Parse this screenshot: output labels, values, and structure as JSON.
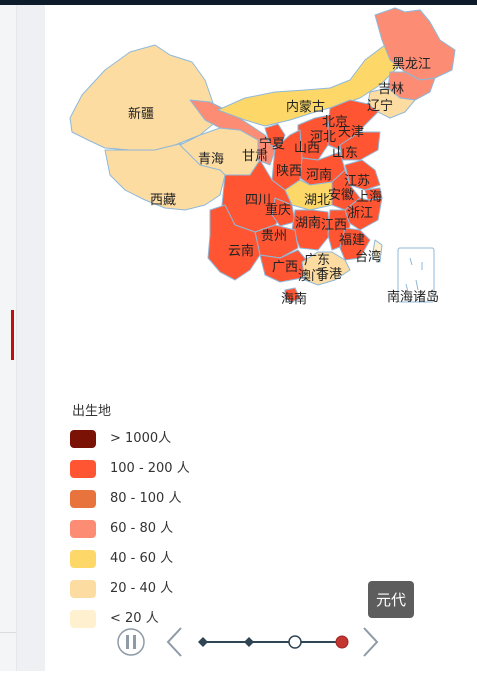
{
  "map": {
    "labels": {
      "heilongjiang": "黑龙江",
      "jilin": "吉林",
      "liaoning": "辽宁",
      "neimenggu": "内蒙古",
      "xinjiang": "新疆",
      "beijing": "北京",
      "tianjin": "天津",
      "hebei": "河北",
      "ningxia": "宁夏",
      "shanxi": "山西",
      "shandong": "山东",
      "gansu": "甘肃",
      "qinghai": "青海",
      "shaanxi": "陕西",
      "henan": "河南",
      "jiangsu": "江苏",
      "xizang": "西藏",
      "sichuan": "四川",
      "hubei": "湖北",
      "anhui": "安徽",
      "shanghai": "上海",
      "chongqing": "重庆",
      "zhejiang": "浙江",
      "hunan": "湖南",
      "jiangxi": "江西",
      "guizhou": "贵州",
      "fujian": "福建",
      "yunnan": "云南",
      "taiwan": "台湾",
      "guangxi": "广西",
      "guangdong": "广东",
      "aomen": "澳门",
      "xianggang": "香港",
      "hainan": "海南",
      "nanhai": "南海诸岛"
    }
  },
  "legend": {
    "title": "出生地",
    "items": [
      {
        "label": "> 1000人",
        "color": "#7a1205"
      },
      {
        "label": "100 - 200 人",
        "color": "#ff5533"
      },
      {
        "label": "80 - 100 人",
        "color": "#e8733c"
      },
      {
        "label": "60 - 80 人",
        "color": "#fc8c73"
      },
      {
        "label": "40 - 60 人",
        "color": "#fdd868"
      },
      {
        "label": "20 - 40 人",
        "color": "#fddca2"
      },
      {
        "label": "< 20 人",
        "color": "#fff1d0"
      }
    ]
  },
  "timeline": {
    "tooltip": "元代",
    "current_index": 3,
    "stops": 4
  },
  "colors": {
    "timeline_line": "#2f4554",
    "current_point": "#c23531",
    "control": "#8e9aa6"
  }
}
